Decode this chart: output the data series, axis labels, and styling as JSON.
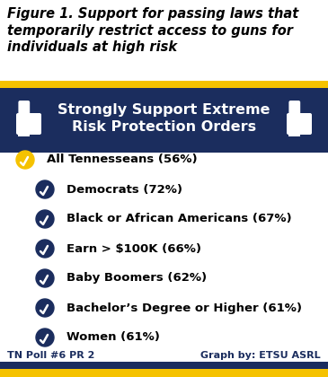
{
  "title_line1": "Figure 1. Support for passing laws that",
  "title_line2": "temporarily restrict access to guns for",
  "title_line3": "individuals at high risk",
  "banner_text_line1": "Strongly Support Extreme",
  "banner_text_line2": "Risk Protection Orders",
  "banner_bg_color": "#1b2d5e",
  "banner_stripe_color": "#f5c200",
  "items": [
    {
      "label": "All Tennesseans (56%)",
      "indent": 0,
      "icon_color": "#f5c200"
    },
    {
      "label": "Democrats (72%)",
      "indent": 1,
      "icon_color": "#1b2d5e"
    },
    {
      "label": "Black or African Americans (67%)",
      "indent": 1,
      "icon_color": "#1b2d5e"
    },
    {
      "label": "Earn > $100K (66%)",
      "indent": 1,
      "icon_color": "#1b2d5e"
    },
    {
      "label": "Baby Boomers (62%)",
      "indent": 1,
      "icon_color": "#1b2d5e"
    },
    {
      "label": "Bachelor’s Degree or Higher (61%)",
      "indent": 1,
      "icon_color": "#1b2d5e"
    },
    {
      "label": "Women (61%)",
      "indent": 1,
      "icon_color": "#1b2d5e"
    }
  ],
  "footer_left": "TN Poll #6 PR 2",
  "footer_right": "Graph by: ETSU ASRL",
  "footer_stripe_color": "#f5c200",
  "footer_dark_color": "#1b2d5e",
  "bg_color": "#ffffff",
  "title_color": "#000000",
  "item_text_color": "#000000",
  "title_fontsize": 10.5,
  "banner_fontsize": 11.5,
  "item_fontsize": 9.5,
  "footer_fontsize": 8.0
}
